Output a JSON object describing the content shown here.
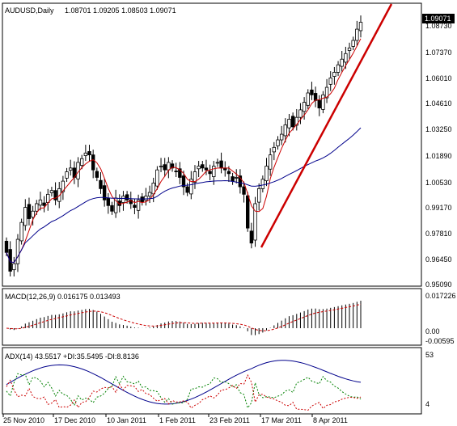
{
  "main": {
    "header": {
      "symbol": "AUDUSD,Daily",
      "ohlc": "1.08701 1.09205 1.08503 1.09071"
    },
    "price_badge": "1.09071",
    "y_ticks": [
      "1.08730",
      "1.07370",
      "1.06010",
      "1.04610",
      "1.03250",
      "1.01890",
      "1.00530",
      "0.99170",
      "0.97810",
      "0.96450",
      "0.95090"
    ],
    "colors": {
      "bull_body": "#ffffff",
      "bear_body": "#000000",
      "ma_fast": "#cc0000",
      "ma_slow": "#00008b",
      "trendline": "#cc0000"
    }
  },
  "macd": {
    "header": "MACD(12,26,9) 0.016175 0.013493",
    "y_ticks": [
      "0.017226",
      "0.00",
      "-0.00595"
    ],
    "colors": {
      "histogram": "#000000",
      "signal": "#cc0000"
    }
  },
  "adx": {
    "header": "ADX(14) 43.5517 +DI:35.5495 -DI:8.8136",
    "y_ticks": [
      "53",
      "4"
    ],
    "colors": {
      "adx": "#00008b",
      "plus_di": "#008000",
      "minus_di": "#cc0000"
    }
  },
  "x_ticks": [
    "25 Nov 2010",
    "17 Dec 2010",
    "10 Jan 2011",
    "1 Feb 2011",
    "23 Feb 2011",
    "17 Mar 2011",
    "8 Apr 2011"
  ],
  "chart_data": {
    "type": "candlestick",
    "title": "AUDUSD,Daily",
    "ylim": [
      0.9509,
      1.0935
    ],
    "trendline": {
      "from": [
        "17 Mar 2011",
        0.969
      ],
      "to": [
        "beyond 8 Apr 2011",
        1.095
      ]
    },
    "series": [
      {
        "name": "AUDUSD",
        "close_approx": [
          0.968,
          0.958,
          0.962,
          0.975,
          0.984,
          0.992,
          0.986,
          0.99,
          0.994,
          0.996,
          0.993,
          0.999,
          1.001,
          0.996,
          1.002,
          1.006,
          1.011,
          1.013,
          1.008,
          1.016,
          1.018,
          1.021,
          1.02,
          1.012,
          1.008,
          1.002,
          0.996,
          0.993,
          0.99,
          0.997,
          0.993,
          0.998,
          0.996,
          0.994,
          0.992,
          0.996,
          0.995,
          0.998,
          1.0,
          1.005,
          1.012,
          1.014,
          1.012,
          1.016,
          1.013,
          1.011,
          1.008,
          1.003,
          1.0,
          1.007,
          1.011,
          1.014,
          1.013,
          1.012,
          1.01,
          1.014,
          1.016,
          1.013,
          1.012,
          1.01,
          1.006,
          1.008,
          1.003,
          0.999,
          0.981,
          0.973,
          0.994,
          1.002,
          1.007,
          1.014,
          1.02,
          1.024,
          1.028,
          1.031,
          1.036,
          1.039,
          1.035,
          1.04,
          1.044,
          1.048,
          1.053,
          1.052,
          1.049,
          1.045,
          1.052,
          1.056,
          1.061,
          1.064,
          1.068,
          1.071,
          1.074,
          1.077,
          1.081,
          1.087,
          1.0907
        ]
      }
    ],
    "indicators": [
      "MACD(12,26,9)",
      "ADX(14)"
    ]
  }
}
